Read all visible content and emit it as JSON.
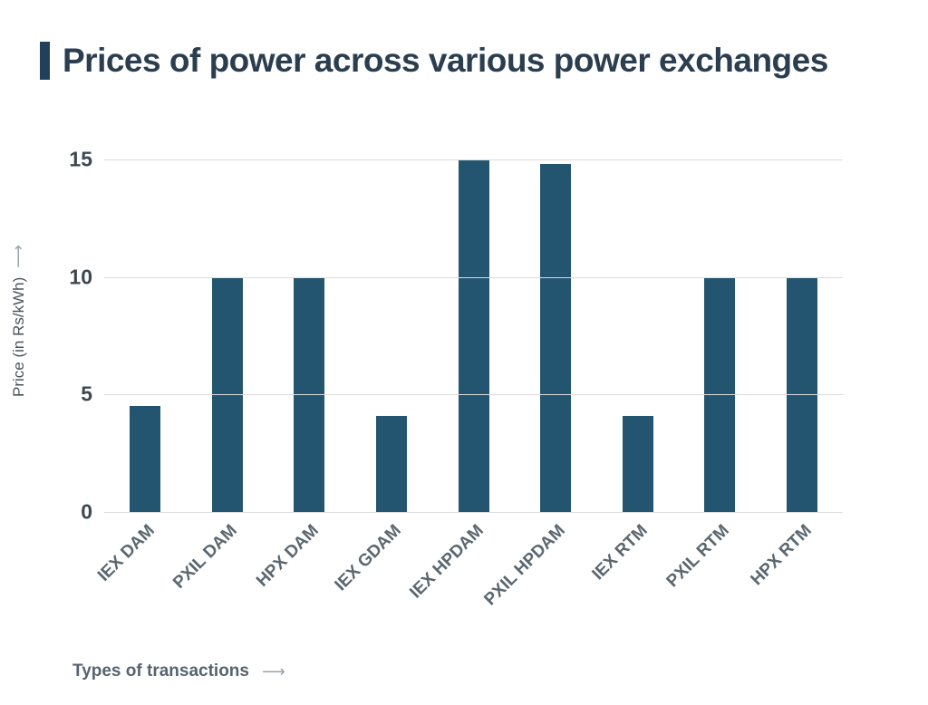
{
  "title": "Prices of power across various power exchanges",
  "chart_data": {
    "type": "bar",
    "title": "Prices of power across various power exchanges",
    "categories": [
      "IEX DAM",
      "PXIL DAM",
      "HPX DAM",
      "IEX GDAM",
      "IEX HPDAM",
      "PXIL HPDAM",
      "IEX RTM",
      "PXIL RTM",
      "HPX RTM"
    ],
    "values": [
      4.5,
      10,
      10,
      4.1,
      15,
      14.8,
      4.1,
      10,
      10
    ],
    "xlabel": "Types of transactions",
    "ylabel": "Price (in Rs/kWh)",
    "yticks": [
      0,
      5,
      10,
      15
    ],
    "ylim": [
      0,
      15
    ],
    "grid": true,
    "bar_color": "#235570",
    "accent_color": "#21405a",
    "arrow_glyph": "⟶"
  }
}
